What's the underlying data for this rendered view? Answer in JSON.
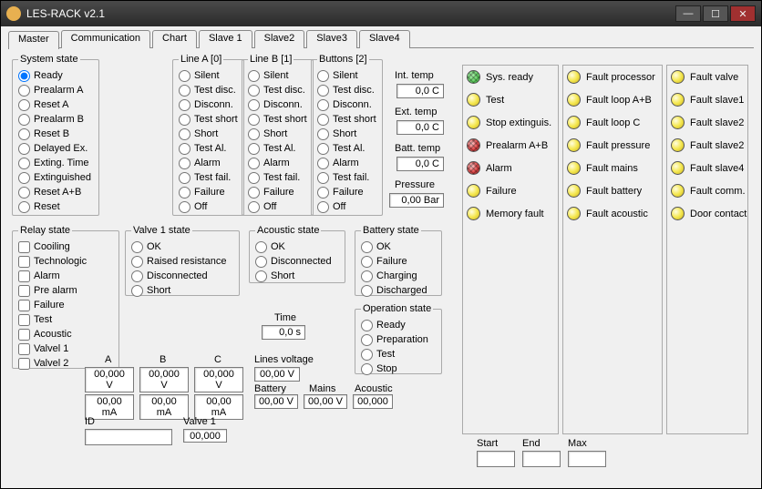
{
  "window": {
    "title": "LES-RACK  v2.1"
  },
  "tabs": [
    "Master",
    "Communication",
    "Chart",
    "Slave 1",
    "Slave2",
    "Slave3",
    "Slave4"
  ],
  "active_tab": 0,
  "system_state": {
    "legend": "System state",
    "items": [
      "Ready",
      "Prealarm A",
      "Reset A",
      "Prealarm B",
      "Reset B",
      "Delayed Ex.",
      "Exting. Time",
      "Extinguished",
      "Reset A+B",
      "Reset"
    ],
    "selected": 0
  },
  "line_a": {
    "legend": "Line A [0]",
    "items": [
      "Silent",
      "Test disc.",
      "Disconn.",
      "Test short",
      "Short",
      "Test Al.",
      "Alarm",
      "Test fail.",
      "Failure",
      "Off"
    ],
    "selected": -1
  },
  "line_b": {
    "legend": "Line B [1]",
    "items": [
      "Silent",
      "Test disc.",
      "Disconn.",
      "Test short",
      "Short",
      "Test Al.",
      "Alarm",
      "Test fail.",
      "Failure",
      "Off"
    ],
    "selected": -1
  },
  "buttons": {
    "legend": "Buttons [2]",
    "items": [
      "Silent",
      "Test disc.",
      "Disconn.",
      "Test short",
      "Short",
      "Test Al.",
      "Alarm",
      "Test fail.",
      "Failure",
      "Off"
    ],
    "selected": -1
  },
  "relay_state": {
    "legend": "Relay  state",
    "items": [
      "Cooiling",
      "Technologic",
      "Alarm",
      "Pre alarm",
      "Failure",
      "Test",
      "Acoustic",
      "Valvel 1",
      "Valvel 2"
    ]
  },
  "valve1_state": {
    "legend": "Valve 1 state",
    "items": [
      "OK",
      "Raised resistance",
      "Disconnected",
      "Short"
    ],
    "selected": -1
  },
  "acoustic_state": {
    "legend": "Acoustic state",
    "items": [
      "OK",
      "Disconnected",
      "Short"
    ],
    "selected": -1
  },
  "battery_state": {
    "legend": "Battery state",
    "items": [
      "OK",
      "Failure",
      "Charging",
      "Discharged"
    ],
    "selected": -1
  },
  "operation_state": {
    "legend": "Operation state",
    "items": [
      "Ready",
      "Preparation",
      "Test",
      "Stop"
    ],
    "selected": -1
  },
  "sensors": {
    "int_temp": {
      "label": "Int. temp",
      "value": "0,0 C"
    },
    "ext_temp": {
      "label": "Ext. temp",
      "value": "0,0 C"
    },
    "batt_temp": {
      "label": "Batt. temp",
      "value": "0,0 C"
    },
    "pressure": {
      "label": "Pressure",
      "value": "0,00 Bar"
    }
  },
  "time": {
    "label": "Time",
    "value": "0,0 s"
  },
  "abc": {
    "headers": [
      "A",
      "B",
      "C"
    ],
    "volts": [
      "00,000 V",
      "00,000 V",
      "00,000 V"
    ],
    "amps": [
      "00,00 mA",
      "00,00 mA",
      "00,00 mA"
    ]
  },
  "lines_voltage": {
    "label": "Lines voltage",
    "value": "00,00 V"
  },
  "battery_v": {
    "label": "Battery",
    "value": "00,00 V"
  },
  "mains_v": {
    "label": "Mains",
    "value": "00,00 V"
  },
  "acoustic_v": {
    "label": "Acoustic",
    "value": "00,000"
  },
  "id": {
    "label": "ID",
    "value": ""
  },
  "valve1_v": {
    "label": "Valve 1",
    "value": "00,000"
  },
  "leds": {
    "col1": [
      {
        "label": "Sys. ready",
        "color": "green",
        "hatch": true
      },
      {
        "label": "Test",
        "color": "yellow"
      },
      {
        "label": "Stop extinguis.",
        "color": "yellow"
      },
      {
        "label": "Prealarm A+B",
        "color": "red",
        "hatch": true
      },
      {
        "label": "Alarm",
        "color": "red",
        "hatch": true
      },
      {
        "label": "Failure",
        "color": "yellow"
      },
      {
        "label": "Memory fault",
        "color": "yellow"
      }
    ],
    "col2": [
      {
        "label": "Fault processor",
        "color": "yellow"
      },
      {
        "label": "Fault loop A+B",
        "color": "yellow"
      },
      {
        "label": "Fault loop C",
        "color": "yellow"
      },
      {
        "label": "Fault pressure",
        "color": "yellow"
      },
      {
        "label": "Fault mains",
        "color": "yellow"
      },
      {
        "label": "Fault battery",
        "color": "yellow"
      },
      {
        "label": "Fault acoustic",
        "color": "yellow"
      }
    ],
    "col3": [
      {
        "label": "Fault valve",
        "color": "yellow"
      },
      {
        "label": "Fault slave1",
        "color": "yellow"
      },
      {
        "label": "Fault slave2",
        "color": "yellow"
      },
      {
        "label": "Fault slave2",
        "color": "yellow"
      },
      {
        "label": "Fault slave4",
        "color": "yellow"
      },
      {
        "label": "Fault comm.",
        "color": "yellow"
      },
      {
        "label": "Door contact",
        "color": "yellow"
      }
    ]
  },
  "range": {
    "start": "Start",
    "end": "End",
    "max": "Max"
  }
}
